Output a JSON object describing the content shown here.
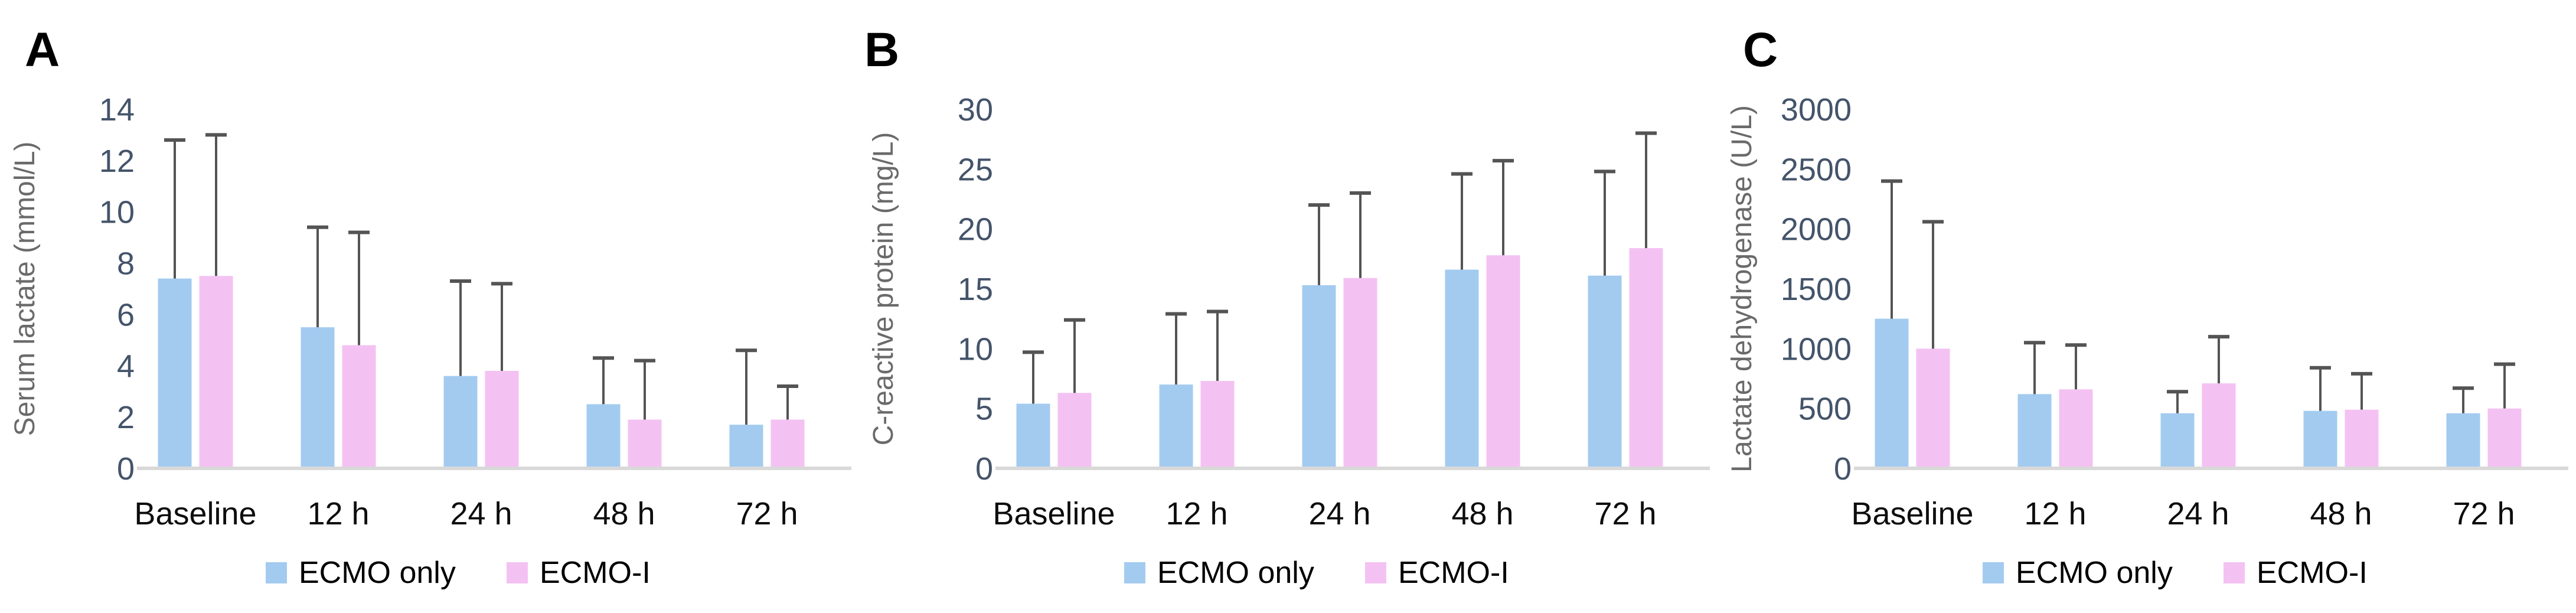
{
  "figure": {
    "legend": {
      "items": [
        {
          "name": "ECMO only",
          "color": "#A3CBF0"
        },
        {
          "name": "ECMO-I",
          "color": "#F4C2F2"
        }
      ]
    },
    "colors": {
      "error_bar": "#545454",
      "axis_line": "#D9D9D9",
      "tick_label": "#44546A",
      "axis_title": "#6A6A6A",
      "category_label": "#0D0D0D",
      "panel_letter": "#000000"
    }
  },
  "chart_data": [
    {
      "panel": "A",
      "type": "bar",
      "title": "",
      "xlabel": "",
      "ylabel": "Serum lactate (mmol/L)",
      "categories": [
        "Baseline",
        "12 h",
        "24 h",
        "48 h",
        "72 h"
      ],
      "ylim": [
        0,
        14
      ],
      "yticks": [
        0,
        2,
        4,
        6,
        8,
        10,
        12,
        14
      ],
      "grid": false,
      "legend_position": "bottom",
      "error_bars": "upper-only",
      "series": [
        {
          "name": "ECMO only",
          "values": [
            7.4,
            5.5,
            3.6,
            2.5,
            1.7
          ],
          "error_top_values": [
            12.8,
            9.4,
            7.3,
            4.3,
            4.6
          ]
        },
        {
          "name": "ECMO-I",
          "values": [
            7.5,
            4.8,
            3.8,
            1.9,
            1.9
          ],
          "error_top_values": [
            13.0,
            9.2,
            7.2,
            4.2,
            3.2
          ]
        }
      ]
    },
    {
      "panel": "B",
      "type": "bar",
      "title": "",
      "xlabel": "",
      "ylabel": "C-reactive protein (mg/L)",
      "categories": [
        "Baseline",
        "12 h",
        "24 h",
        "48 h",
        "72 h"
      ],
      "ylim": [
        0,
        30
      ],
      "yticks": [
        0,
        5,
        10,
        15,
        20,
        25,
        30
      ],
      "grid": false,
      "legend_position": "bottom",
      "error_bars": "upper-only",
      "series": [
        {
          "name": "ECMO only",
          "values": [
            5.4,
            7.0,
            15.3,
            16.6,
            16.1
          ],
          "error_top_values": [
            9.7,
            12.9,
            22.0,
            24.6,
            24.8
          ]
        },
        {
          "name": "ECMO-I",
          "values": [
            6.3,
            7.3,
            15.9,
            17.8,
            18.4
          ],
          "error_top_values": [
            12.4,
            13.1,
            23.0,
            25.7,
            28.0
          ]
        }
      ]
    },
    {
      "panel": "C",
      "type": "bar",
      "title": "",
      "xlabel": "",
      "ylabel": "Lactate dehydrogenase (U/L)",
      "categories": [
        "Baseline",
        "12 h",
        "24 h",
        "48 h",
        "72 h"
      ],
      "ylim": [
        0,
        3000
      ],
      "yticks": [
        0,
        500,
        1000,
        1500,
        2000,
        2500,
        3000
      ],
      "grid": false,
      "legend_position": "bottom",
      "error_bars": "upper-only",
      "series": [
        {
          "name": "ECMO only",
          "values": [
            1250,
            620,
            460,
            480,
            460
          ],
          "error_top_values": [
            2400,
            1050,
            640,
            840,
            670
          ]
        },
        {
          "name": "ECMO-I",
          "values": [
            1000,
            660,
            710,
            490,
            500
          ],
          "error_top_values": [
            2060,
            1030,
            1100,
            790,
            870
          ]
        }
      ]
    }
  ]
}
